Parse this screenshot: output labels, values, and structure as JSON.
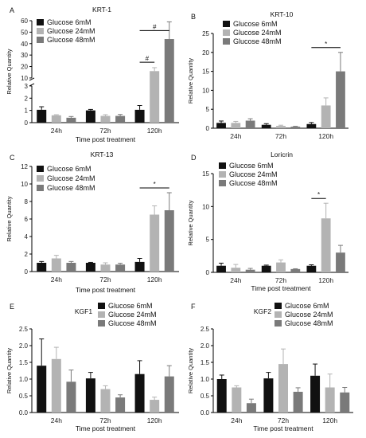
{
  "colors": {
    "g6": "#111111",
    "g24": "#b3b3b3",
    "g48": "#7a7a7a",
    "axis": "#000000"
  },
  "chart_data": [
    {
      "panel": "A",
      "type": "bar",
      "title": "KRT-1",
      "categories": [
        "24h",
        "72h",
        "120h"
      ],
      "series": [
        {
          "name": "Glucose 6mM",
          "values": [
            1.05,
            1.0,
            1.05
          ],
          "errors": [
            0.25,
            0.08,
            0.35
          ]
        },
        {
          "name": "Glucose 24mM",
          "values": [
            0.6,
            0.55,
            16.0
          ],
          "errors": [
            0.05,
            0.1,
            3.0
          ]
        },
        {
          "name": "Glucose 48mM",
          "values": [
            0.4,
            0.55,
            44.0
          ],
          "errors": [
            0.1,
            0.12,
            15.0
          ]
        }
      ],
      "ylabel": "Relative Quantity",
      "xlabel": "Time post treatment",
      "ylim": [
        0,
        60
      ],
      "axis_break": [
        3,
        10
      ],
      "yticks": [
        "0",
        "1",
        "2",
        "3",
        "10",
        "20",
        "30",
        "40",
        "50",
        "60"
      ],
      "annotations": [
        {
          "text": "#",
          "from": "120h-6mM",
          "to": "120h-24mM"
        },
        {
          "text": "#",
          "from": "120h-6mM",
          "to": "120h-48mM"
        }
      ],
      "legend": "top-left"
    },
    {
      "panel": "B",
      "type": "bar",
      "title": "KRT-10",
      "categories": [
        "24h",
        "72h",
        "120h"
      ],
      "series": [
        {
          "name": "Glucose 6mM",
          "values": [
            1.4,
            0.9,
            1.1
          ],
          "errors": [
            0.5,
            0.3,
            0.4
          ]
        },
        {
          "name": "Glucose 24mM",
          "values": [
            1.4,
            0.6,
            6.0
          ],
          "errors": [
            0.4,
            0.2,
            2.0
          ]
        },
        {
          "name": "Glucose 48mM",
          "values": [
            2.0,
            0.4,
            15.0
          ],
          "errors": [
            0.5,
            0.1,
            5.0
          ]
        }
      ],
      "ylabel": "Relative Quantity",
      "xlabel": "",
      "ylim": [
        0,
        25
      ],
      "yticks": [
        "0",
        "5",
        "10",
        "15",
        "20",
        "25"
      ],
      "annotations": [
        {
          "text": "*",
          "from": "120h-6mM",
          "to": "120h-48mM"
        }
      ],
      "legend": "top-left"
    },
    {
      "panel": "C",
      "type": "bar",
      "title": "KRT-13",
      "categories": [
        "24h",
        "72h",
        "120h"
      ],
      "series": [
        {
          "name": "Glucose 6mM",
          "values": [
            1.0,
            1.0,
            1.1
          ],
          "errors": [
            0.15,
            0.05,
            0.4
          ]
        },
        {
          "name": "Glucose 24mM",
          "values": [
            1.5,
            0.8,
            6.5
          ],
          "errors": [
            0.35,
            0.2,
            1.0
          ]
        },
        {
          "name": "Glucose 48mM",
          "values": [
            1.0,
            0.8,
            7.0
          ],
          "errors": [
            0.15,
            0.15,
            2.0
          ]
        }
      ],
      "ylabel": "Relative Quantity",
      "xlabel": "Time post treatment",
      "ylim": [
        0,
        12
      ],
      "yticks": [
        "0",
        "2",
        "4",
        "6",
        "8",
        "10",
        "12"
      ],
      "annotations": [
        {
          "text": "*",
          "from": "120h-6mM",
          "to": "120h-48mM"
        }
      ],
      "legend": "top-left"
    },
    {
      "panel": "D",
      "type": "bar",
      "title": "Loricrin",
      "categories": [
        "24h",
        "72h",
        "120h"
      ],
      "series": [
        {
          "name": "Glucose 6mM",
          "values": [
            1.0,
            1.0,
            1.0
          ],
          "errors": [
            0.4,
            0.1,
            0.15
          ]
        },
        {
          "name": "Glucose 24mM",
          "values": [
            0.7,
            1.5,
            8.2
          ],
          "errors": [
            0.5,
            0.4,
            2.3
          ]
        },
        {
          "name": "Glucose 48mM",
          "values": [
            0.4,
            0.5,
            3.0
          ],
          "errors": [
            0.2,
            0.05,
            1.1
          ]
        }
      ],
      "ylabel": "Relative Quantity",
      "xlabel": "Time post treatment",
      "ylim": [
        0,
        15
      ],
      "yticks": [
        "0",
        "5",
        "10",
        "15"
      ],
      "annotations": [
        {
          "text": "*",
          "from": "120h-6mM",
          "to": "120h-24mM"
        }
      ],
      "legend": "top-left"
    },
    {
      "panel": "E",
      "type": "bar",
      "title": "KGF1",
      "categories": [
        "24h",
        "72h",
        "120h"
      ],
      "series": [
        {
          "name": "Glucose 6mM",
          "values": [
            1.4,
            1.02,
            1.15
          ],
          "errors": [
            0.8,
            0.18,
            0.4
          ]
        },
        {
          "name": "Glucose 24mM",
          "values": [
            1.6,
            0.7,
            0.38
          ],
          "errors": [
            0.35,
            0.1,
            0.08
          ]
        },
        {
          "name": "Glucose 48mM",
          "values": [
            0.92,
            0.45,
            1.08
          ],
          "errors": [
            0.35,
            0.08,
            0.32
          ]
        }
      ],
      "ylabel": "Relative Quantity",
      "xlabel": "Time post treatment",
      "ylim": [
        0,
        2.5
      ],
      "yticks": [
        "0.0",
        "0.5",
        "1.0",
        "1.5",
        "2.0",
        "2.5"
      ],
      "annotations": [],
      "legend": "top-right"
    },
    {
      "panel": "F",
      "type": "bar",
      "title": "KGF2",
      "categories": [
        "24h",
        "72h",
        "120h"
      ],
      "series": [
        {
          "name": "Glucose 6mM",
          "values": [
            1.0,
            1.02,
            1.1
          ],
          "errors": [
            0.12,
            0.18,
            0.35
          ]
        },
        {
          "name": "Glucose 24mM",
          "values": [
            0.75,
            1.45,
            0.75
          ],
          "errors": [
            0.05,
            0.45,
            0.4
          ]
        },
        {
          "name": "Glucose 48mM",
          "values": [
            0.28,
            0.62,
            0.6
          ],
          "errors": [
            0.12,
            0.12,
            0.15
          ]
        }
      ],
      "ylabel": "Relative Quantity",
      "xlabel": "Time post treatment",
      "ylim": [
        0,
        2.5
      ],
      "yticks": [
        "0.0",
        "0.5",
        "1.0",
        "1.5",
        "2.0",
        "2.5"
      ],
      "annotations": [],
      "legend": "top-right"
    }
  ]
}
